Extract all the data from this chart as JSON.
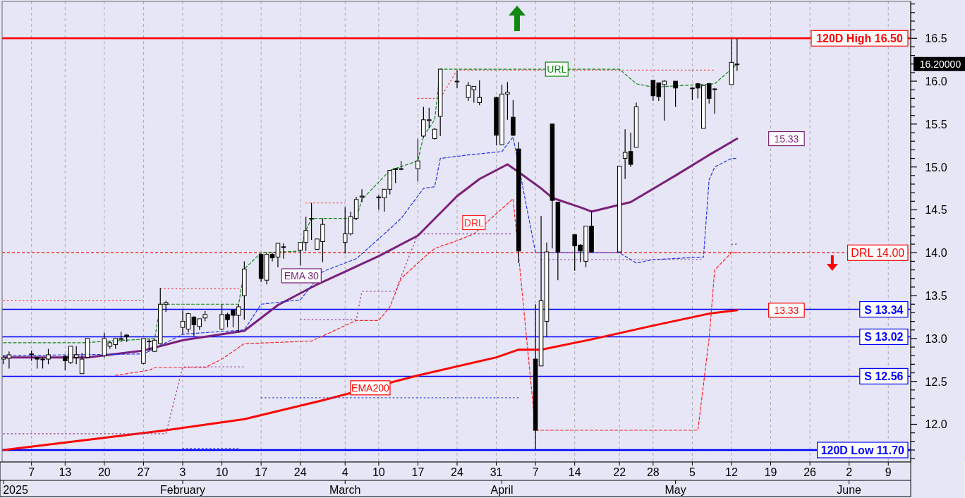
{
  "chart_data": {
    "type": "candlestick",
    "x": [
      "2025-01-02",
      "2025-01-03",
      "2025-01-07",
      "2025-01-08",
      "2025-01-09",
      "2025-01-10",
      "2025-01-13",
      "2025-01-14",
      "2025-01-15",
      "2025-01-16",
      "2025-01-17",
      "2025-01-20",
      "2025-01-21",
      "2025-01-22",
      "2025-01-23",
      "2025-01-24",
      "2025-01-27",
      "2025-01-28",
      "2025-01-29",
      "2025-01-30",
      "2025-01-31",
      "2025-02-03",
      "2025-02-04",
      "2025-02-05",
      "2025-02-06",
      "2025-02-07",
      "2025-02-10",
      "2025-02-11",
      "2025-02-12",
      "2025-02-13",
      "2025-02-14",
      "2025-02-17",
      "2025-02-18",
      "2025-02-19",
      "2025-02-20",
      "2025-02-21",
      "2025-02-24",
      "2025-02-25",
      "2025-02-26",
      "2025-02-27",
      "2025-02-28",
      "2025-03-04",
      "2025-03-05",
      "2025-03-06",
      "2025-03-07",
      "2025-03-10",
      "2025-03-11",
      "2025-03-12",
      "2025-03-13",
      "2025-03-14",
      "2025-03-17",
      "2025-03-18",
      "2025-03-19",
      "2025-03-20",
      "2025-03-21",
      "2025-03-24",
      "2025-03-26",
      "2025-03-27",
      "2025-03-28",
      "2025-03-31",
      "2025-04-01",
      "2025-04-02",
      "2025-04-03",
      "2025-04-04",
      "2025-04-07",
      "2025-04-08",
      "2025-04-09",
      "2025-04-10",
      "2025-04-11",
      "2025-04-14",
      "2025-04-15",
      "2025-04-16",
      "2025-04-17",
      "2025-04-22",
      "2025-04-23",
      "2025-04-24",
      "2025-04-25",
      "2025-04-28",
      "2025-04-29",
      "2025-04-30",
      "2025-05-02",
      "2025-05-05",
      "2025-05-06",
      "2025-05-07",
      "2025-05-08",
      "2025-05-09",
      "2025-05-12",
      "2025-05-13"
    ],
    "ohlc": [
      [
        12.76,
        12.8,
        12.7,
        12.78
      ],
      [
        12.77,
        12.85,
        12.65,
        12.81
      ],
      [
        12.82,
        12.86,
        12.74,
        12.82
      ],
      [
        12.78,
        12.79,
        12.65,
        12.76
      ],
      [
        12.76,
        12.78,
        12.65,
        12.76
      ],
      [
        12.76,
        12.88,
        12.7,
        12.81
      ],
      [
        12.79,
        12.81,
        12.63,
        12.74
      ],
      [
        12.72,
        12.91,
        12.7,
        12.91
      ],
      [
        12.78,
        12.91,
        12.7,
        12.81
      ],
      [
        12.59,
        12.83,
        12.59,
        12.76
      ],
      [
        12.78,
        13.0,
        12.77,
        13.0
      ],
      [
        12.8,
        13.07,
        12.78,
        13.0
      ],
      [
        12.91,
        12.97,
        12.88,
        12.95
      ],
      [
        12.93,
        13.0,
        12.88,
        13.0
      ],
      [
        12.99,
        13.08,
        12.96,
        13.0
      ],
      [
        13.04,
        13.05,
        12.96,
        13.02
      ],
      [
        12.71,
        13.0,
        12.7,
        13.0
      ],
      [
        12.97,
        13.0,
        12.85,
        12.97
      ],
      [
        12.85,
        13.0,
        12.84,
        12.98
      ],
      [
        12.94,
        13.59,
        12.93,
        13.4
      ],
      [
        13.4,
        13.44,
        13.31,
        13.42
      ],
      [
        13.13,
        13.33,
        13.05,
        13.2
      ],
      [
        13.11,
        13.3,
        13.07,
        13.29
      ],
      [
        13.25,
        13.26,
        13.03,
        13.16
      ],
      [
        13.14,
        13.23,
        13.1,
        13.23
      ],
      [
        13.24,
        13.32,
        13.2,
        13.28
      ],
      [
        13.11,
        13.4,
        13.1,
        13.28
      ],
      [
        13.28,
        13.3,
        13.13,
        13.22
      ],
      [
        13.33,
        13.33,
        13.13,
        13.27
      ],
      [
        13.27,
        13.4,
        13.07,
        13.37
      ],
      [
        13.5,
        13.9,
        13.22,
        13.81
      ],
      [
        13.98,
        13.99,
        13.66,
        13.7
      ],
      [
        13.68,
        14.0,
        13.63,
        13.98
      ],
      [
        13.98,
        14.0,
        13.9,
        13.94
      ],
      [
        13.95,
        14.11,
        13.83,
        14.11
      ],
      [
        14.07,
        14.11,
        13.93,
        14.07
      ],
      [
        14.03,
        14.12,
        13.85,
        14.12
      ],
      [
        14.12,
        14.42,
        14.02,
        14.26
      ],
      [
        14.4,
        14.58,
        14.15,
        14.4
      ],
      [
        14.04,
        14.16,
        14.03,
        14.16
      ],
      [
        14.13,
        14.4,
        13.89,
        14.33
      ],
      [
        14.12,
        14.53,
        13.99,
        14.22
      ],
      [
        14.22,
        14.48,
        14.2,
        14.42
      ],
      [
        14.4,
        14.65,
        14.38,
        14.62
      ],
      [
        14.65,
        14.74,
        14.59,
        14.66
      ],
      [
        14.64,
        14.67,
        14.5,
        14.65
      ],
      [
        14.64,
        14.74,
        14.48,
        14.74
      ],
      [
        14.74,
        14.96,
        14.68,
        14.96
      ],
      [
        14.97,
        14.99,
        14.81,
        14.98
      ],
      [
        14.98,
        15.07,
        14.96,
        14.98
      ],
      [
        14.98,
        15.33,
        14.83,
        15.07
      ],
      [
        15.36,
        15.7,
        15.34,
        15.55
      ],
      [
        15.54,
        15.69,
        15.45,
        15.55
      ],
      [
        15.33,
        15.45,
        15.32,
        15.44
      ],
      [
        15.59,
        16.14,
        15.36,
        16.14
      ],
      [
        16.0,
        16.12,
        15.92,
        16.0
      ],
      [
        15.81,
        15.99,
        15.77,
        15.95
      ],
      [
        15.9,
        15.94,
        15.75,
        15.94
      ],
      [
        15.75,
        16.01,
        15.72,
        15.81
      ],
      [
        15.81,
        15.82,
        15.25,
        15.37
      ],
      [
        15.26,
        15.96,
        15.26,
        15.85
      ],
      [
        15.85,
        15.99,
        15.55,
        15.87
      ],
      [
        15.58,
        15.78,
        15.36,
        15.37
      ],
      [
        15.21,
        15.29,
        13.88,
        14.02
      ],
      [
        12.76,
        13.4,
        11.7,
        11.93
      ],
      [
        12.68,
        14.43,
        12.68,
        13.44
      ],
      [
        13.2,
        14.12,
        13.02,
        14.01
      ],
      [
        15.5,
        15.5,
        14.05,
        14.61
      ],
      [
        14.59,
        14.59,
        13.68,
        14.01
      ],
      [
        14.21,
        14.21,
        13.79,
        14.08
      ],
      [
        14.09,
        14.1,
        13.89,
        14.02
      ],
      [
        13.9,
        14.31,
        13.83,
        14.31
      ],
      [
        14.31,
        14.49,
        14.01,
        14.01
      ],
      [
        14.01,
        15.01,
        14.01,
        15.01
      ],
      [
        15.1,
        15.44,
        14.86,
        15.17
      ],
      [
        15.18,
        15.4,
        15.0,
        15.03
      ],
      [
        15.23,
        15.75,
        15.23,
        15.7
      ],
      [
        16.01,
        16.01,
        15.77,
        15.83
      ],
      [
        15.98,
        15.98,
        15.77,
        15.82
      ],
      [
        15.96,
        16.01,
        15.54,
        16.0
      ],
      [
        16.0,
        16.0,
        15.7,
        15.92
      ],
      [
        15.92,
        15.93,
        15.78,
        15.92
      ],
      [
        15.97,
        15.98,
        15.8,
        15.92
      ],
      [
        15.45,
        15.95,
        15.45,
        15.95
      ],
      [
        15.97,
        15.98,
        15.74,
        15.8
      ],
      [
        15.91,
        15.92,
        15.62,
        15.91
      ],
      [
        15.96,
        16.5,
        15.96,
        16.22
      ],
      [
        16.2,
        16.5,
        16.12,
        16.2
      ]
    ],
    "series": [
      {
        "type": "line",
        "name": "EMA 30",
        "color": "#7a1f7a",
        "x": [
          "2025-01-02",
          "2025-01-17",
          "2025-01-27",
          "2025-02-03",
          "2025-02-14",
          "2025-02-20",
          "2025-02-27",
          "2025-03-04",
          "2025-03-10",
          "2025-03-17",
          "2025-03-24",
          "2025-03-28",
          "2025-04-02",
          "2025-04-04",
          "2025-04-08",
          "2025-04-10",
          "2025-04-15",
          "2025-04-17",
          "2025-04-24",
          "2025-05-02",
          "2025-05-08",
          "2025-05-13"
        ],
        "values": [
          12.78,
          12.78,
          12.86,
          12.98,
          13.09,
          13.39,
          13.63,
          13.78,
          13.96,
          14.2,
          14.66,
          14.86,
          15.03,
          14.94,
          14.75,
          14.64,
          14.53,
          14.48,
          14.59,
          14.9,
          15.14,
          15.33
        ]
      },
      {
        "type": "line",
        "name": "EMA200",
        "color": "#ff0000",
        "x": [
          "2025-01-02",
          "2025-01-31",
          "2025-02-14",
          "2025-02-28",
          "2025-03-17",
          "2025-03-31",
          "2025-04-04",
          "2025-04-08",
          "2025-04-17",
          "2025-04-28",
          "2025-05-08",
          "2025-05-13"
        ],
        "values": [
          11.7,
          11.93,
          12.06,
          12.28,
          12.57,
          12.78,
          12.87,
          12.87,
          12.99,
          13.15,
          13.29,
          13.33
        ]
      },
      {
        "type": "line",
        "name": "URL",
        "color": "#118811",
        "line_style": "dashed",
        "x": [
          "2025-01-02",
          "2025-01-16",
          "2025-01-29",
          "2025-01-30",
          "2025-02-13",
          "2025-02-14",
          "2025-02-17",
          "2025-02-24",
          "2025-02-25",
          "2025-02-26",
          "2025-03-06",
          "2025-03-07",
          "2025-03-12",
          "2025-03-17",
          "2025-03-18",
          "2025-03-20",
          "2025-03-21",
          "2025-04-22",
          "2025-04-25",
          "2025-04-28",
          "2025-05-09",
          "2025-05-13"
        ],
        "values": [
          12.95,
          12.95,
          13.0,
          13.4,
          13.4,
          13.81,
          14.0,
          14.02,
          14.26,
          14.4,
          14.4,
          14.62,
          14.96,
          15.07,
          15.36,
          15.55,
          16.14,
          16.14,
          15.97,
          15.93,
          15.97,
          16.2
        ]
      },
      {
        "type": "line",
        "name": "DRL",
        "color": "#ff2222",
        "line_style": "dashed",
        "x": [
          "2025-01-22",
          "2025-01-28",
          "2025-01-29",
          "2025-02-07",
          "2025-02-10",
          "2025-02-14",
          "2025-02-26",
          "2025-03-06",
          "2025-03-10",
          "2025-03-12",
          "2025-03-14",
          "2025-03-18",
          "2025-03-20",
          "2025-03-24",
          "2025-03-27",
          "2025-04-03",
          "2025-04-07",
          "2025-05-06",
          "2025-05-08",
          "2025-05-09",
          "2025-05-12",
          "2025-05-13"
        ],
        "values": [
          12.57,
          12.63,
          12.66,
          12.66,
          12.76,
          12.94,
          12.97,
          13.21,
          13.21,
          13.37,
          13.7,
          13.94,
          14.05,
          14.14,
          14.22,
          14.63,
          11.93,
          11.93,
          13.0,
          13.8,
          14.0,
          14.0
        ]
      },
      {
        "type": "line",
        "color": "#2233ee",
        "line_style": "dashed",
        "x": [
          "2025-01-02",
          "2025-01-27",
          "2025-02-03",
          "2025-02-14",
          "2025-02-17",
          "2025-02-24",
          "2025-02-28",
          "2025-03-06",
          "2025-03-11",
          "2025-03-14",
          "2025-03-18",
          "2025-03-20",
          "2025-03-21",
          "2025-03-26",
          "2025-04-01",
          "2025-04-03",
          "2025-04-07",
          "2025-04-22",
          "2025-04-25",
          "2025-04-28",
          "2025-05-07",
          "2025-05-08",
          "2025-05-09",
          "2025-05-12",
          "2025-05-13"
        ],
        "values": [
          12.8,
          12.82,
          13.05,
          13.1,
          13.4,
          13.45,
          13.78,
          13.93,
          14.22,
          14.4,
          14.75,
          14.77,
          15.1,
          15.14,
          15.18,
          15.35,
          14.0,
          14.0,
          13.88,
          13.92,
          13.95,
          14.85,
          15.0,
          15.1,
          15.1
        ]
      },
      {
        "type": "line",
        "color": "#ff3333",
        "line_style": "dotted",
        "x": [
          "2025-01-02",
          "2025-01-27",
          "2025-01-29",
          "2025-01-30",
          "2025-02-13",
          "2025-02-14",
          "2025-02-25",
          "2025-03-04",
          "2025-03-05",
          "2025-03-17",
          "2025-03-21",
          "2025-03-24",
          "2025-05-09"
        ],
        "values": [
          13.44,
          13.44,
          null,
          13.58,
          13.58,
          null,
          14.58,
          14.58,
          null,
          15.8,
          15.8,
          16.13,
          16.13
        ]
      },
      {
        "type": "line",
        "color": "#3344ee",
        "line_style": "dotted",
        "x": [
          "2025-02-03",
          "2025-02-13",
          "2025-02-14",
          "2025-02-17",
          "2025-04-04"
        ],
        "values": [
          11.72,
          11.72,
          null,
          12.31,
          12.31
        ]
      },
      {
        "type": "line",
        "color": "#993399",
        "line_style": "dotted",
        "x": [
          "2025-01-02",
          "2025-01-31",
          "2025-02-03",
          "2025-02-14",
          "2025-02-17",
          "2025-02-24",
          "2025-03-06",
          "2025-03-07",
          "2025-03-13",
          "2025-03-17",
          "2025-04-03",
          "2025-04-07",
          "2025-04-08",
          "2025-05-07",
          "2025-05-08",
          "2025-05-12",
          "2025-05-13"
        ],
        "values": [
          11.89,
          11.89,
          12.67,
          12.67,
          null,
          13.22,
          13.22,
          13.55,
          13.55,
          14.22,
          14.22,
          null,
          13.92,
          13.92,
          null,
          14.1,
          14.1
        ]
      }
    ],
    "xlim": [
      "2025-01-01T18:00",
      "2025-06-13"
    ],
    "xticks": [
      {
        "value": "2025-01-07",
        "label": "7"
      },
      {
        "value": "2025-01-13",
        "label": "13"
      },
      {
        "value": "2025-01-20",
        "label": "20"
      },
      {
        "value": "2025-01-27",
        "label": "27"
      },
      {
        "value": "2025-02-03",
        "label": "3"
      },
      {
        "value": "2025-02-10",
        "label": "10"
      },
      {
        "value": "2025-02-17",
        "label": "17"
      },
      {
        "value": "2025-02-24",
        "label": "24"
      },
      {
        "value": "2025-03-04",
        "label": "4"
      },
      {
        "value": "2025-03-10",
        "label": "10"
      },
      {
        "value": "2025-03-17",
        "label": "17"
      },
      {
        "value": "2025-03-24",
        "label": "24"
      },
      {
        "value": "2025-03-31",
        "label": "31"
      },
      {
        "value": "2025-04-07",
        "label": "7"
      },
      {
        "value": "2025-04-14",
        "label": "14"
      },
      {
        "value": "2025-04-22",
        "label": "22"
      },
      {
        "value": "2025-04-28",
        "label": "28"
      },
      {
        "value": "2025-05-05",
        "label": "5"
      },
      {
        "value": "2025-05-12",
        "label": "12"
      },
      {
        "value": "2025-05-19",
        "label": "19"
      },
      {
        "value": "2025-05-26",
        "label": "26"
      },
      {
        "value": "2025-06-02",
        "label": "2"
      },
      {
        "value": "2025-06-09",
        "label": "9"
      }
    ],
    "x2lim": [
      "2025-01-01T18:00",
      "2025-06-13"
    ],
    "x2ticks": [
      {
        "value": "2025-01-02",
        "label": "2025"
      },
      {
        "value": "2025-02-03",
        "label": "February"
      },
      {
        "value": "2025-03-04",
        "label": "March"
      },
      {
        "value": "2025-04-01",
        "label": "April"
      },
      {
        "value": "2025-05-02",
        "label": "May"
      },
      {
        "value": "2025-06-02",
        "label": "June"
      }
    ],
    "ylim": [
      11.56,
      16.93
    ],
    "yticks": [
      {
        "value": 11.6,
        "label": null
      },
      {
        "value": 11.7,
        "label": null
      },
      {
        "value": 11.8,
        "label": null
      },
      {
        "value": 11.9,
        "label": null
      },
      {
        "value": 12,
        "label": "12.0"
      },
      {
        "value": 12.1,
        "label": null
      },
      {
        "value": 12.2,
        "label": null
      },
      {
        "value": 12.3,
        "label": null
      },
      {
        "value": 12.4,
        "label": null
      },
      {
        "value": 12.5,
        "label": "12.5"
      },
      {
        "value": 12.6,
        "label": null
      },
      {
        "value": 12.7,
        "label": null
      },
      {
        "value": 12.8,
        "label": null
      },
      {
        "value": 12.9,
        "label": null
      },
      {
        "value": 13,
        "label": "13.0"
      },
      {
        "value": 13.1,
        "label": null
      },
      {
        "value": 13.2,
        "label": null
      },
      {
        "value": 13.3,
        "label": null
      },
      {
        "value": 13.4,
        "label": null
      },
      {
        "value": 13.5,
        "label": "13.5"
      },
      {
        "value": 13.6,
        "label": null
      },
      {
        "value": 13.7,
        "label": null
      },
      {
        "value": 13.8,
        "label": null
      },
      {
        "value": 13.9,
        "label": null
      },
      {
        "value": 14,
        "label": "14.0"
      },
      {
        "value": 14.1,
        "label": null
      },
      {
        "value": 14.2,
        "label": null
      },
      {
        "value": 14.3,
        "label": null
      },
      {
        "value": 14.4,
        "label": null
      },
      {
        "value": 14.5,
        "label": "14.5"
      },
      {
        "value": 14.6,
        "label": null
      },
      {
        "value": 14.7,
        "label": null
      },
      {
        "value": 14.8,
        "label": null
      },
      {
        "value": 14.9,
        "label": null
      },
      {
        "value": 15,
        "label": "15.0"
      },
      {
        "value": 15.1,
        "label": null
      },
      {
        "value": 15.2,
        "label": null
      },
      {
        "value": 15.3,
        "label": null
      },
      {
        "value": 15.4,
        "label": null
      },
      {
        "value": 15.5,
        "label": "15.5"
      },
      {
        "value": 15.6,
        "label": null
      },
      {
        "value": 15.7,
        "label": null
      },
      {
        "value": 15.8,
        "label": null
      },
      {
        "value": 15.9,
        "label": null
      },
      {
        "value": 16,
        "label": "16.0"
      },
      {
        "value": 16.1,
        "label": null
      },
      {
        "value": 16.2,
        "label": null
      },
      {
        "value": 16.3,
        "label": null
      },
      {
        "value": 16.4,
        "label": null
      },
      {
        "value": 16.5,
        "label": "16.5"
      },
      {
        "value": 16.6,
        "label": null
      },
      {
        "value": 16.7,
        "label": null
      },
      {
        "value": 16.8,
        "label": null
      },
      {
        "value": 16.9,
        "label": null
      }
    ],
    "grid": "x",
    "legend": false,
    "ref_lines": [
      {
        "axis": "y",
        "value": 16.5,
        "label": "120D High 16.50",
        "color": "#ff0000"
      },
      {
        "axis": "y",
        "value": 14.0,
        "label": "DRL 14.00",
        "color": "#ff0000",
        "line_style": "dashed"
      },
      {
        "axis": "y",
        "value": 13.34,
        "label": "S 13.34",
        "color": "#0000ff"
      },
      {
        "axis": "y",
        "value": 13.02,
        "label": "S 13.02",
        "color": "#0000ff"
      },
      {
        "axis": "y",
        "value": 12.56,
        "label": "S 12.56",
        "color": "#0000ff"
      },
      {
        "axis": "y",
        "value": 11.7,
        "label": "120D Low 11.70",
        "color": "#0000ff"
      }
    ],
    "annotations": [
      "15.33",
      "13.33",
      "16.20000"
    ]
  }
}
